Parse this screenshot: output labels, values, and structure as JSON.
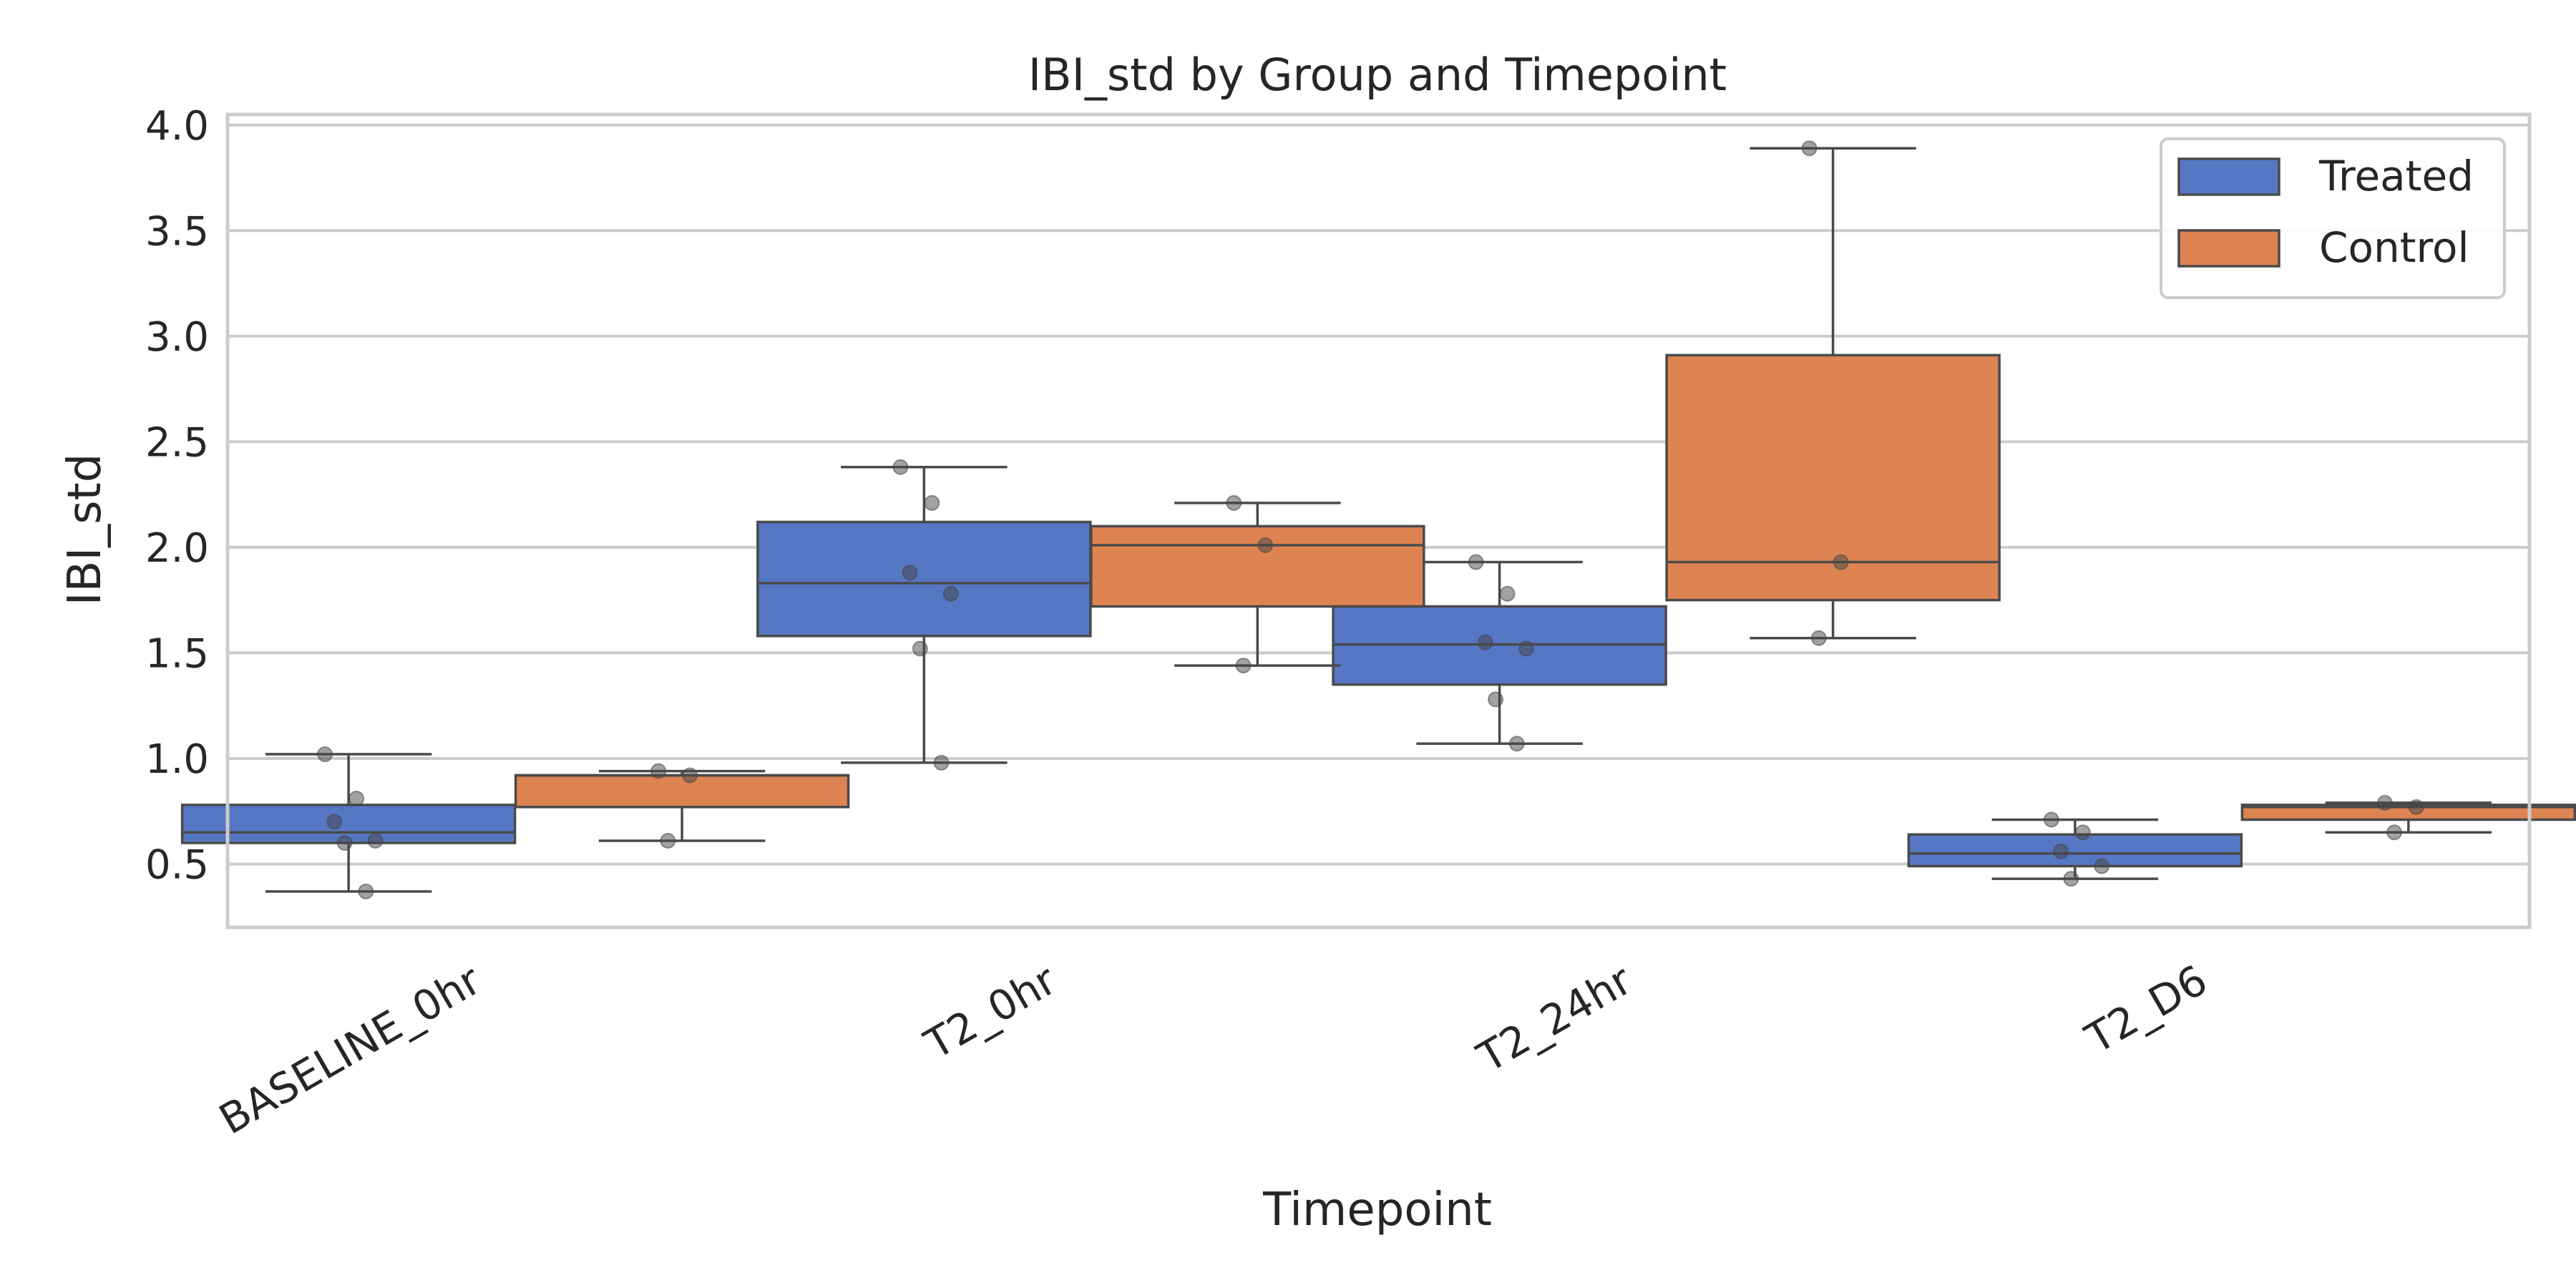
{
  "chart_data": {
    "type": "boxplot",
    "title": "IBI_std by Group and Timepoint",
    "xlabel": "Timepoint",
    "ylabel": "IBI_std",
    "categories": [
      "BASELINE_0hr",
      "T2_0hr",
      "T2_24hr",
      "T2_D6"
    ],
    "ylim": [
      0.2,
      4.05
    ],
    "yticks": [
      "0.5",
      "1.0",
      "1.5",
      "2.0",
      "2.5",
      "3.0",
      "3.5",
      "4.0"
    ],
    "grid": "horizontal",
    "legend_position": "top-right",
    "series": [
      {
        "name": "Treated",
        "color": "#5677c4",
        "boxes": [
          {
            "whislo": 0.37,
            "q1": 0.6,
            "med": 0.65,
            "q3": 0.78,
            "whishi": 1.02
          },
          {
            "whislo": 0.98,
            "q1": 1.58,
            "med": 1.83,
            "q3": 2.12,
            "whishi": 2.38
          },
          {
            "whislo": 1.07,
            "q1": 1.35,
            "med": 1.54,
            "q3": 1.72,
            "whishi": 1.93
          },
          {
            "whislo": 0.43,
            "q1": 0.49,
            "med": 0.55,
            "q3": 0.64,
            "whishi": 0.71
          }
        ],
        "points": [
          [
            1.02,
            0.81,
            0.7,
            0.61,
            0.6,
            0.37
          ],
          [
            2.38,
            2.21,
            1.88,
            1.78,
            1.52,
            0.98
          ],
          [
            1.93,
            1.78,
            1.55,
            1.52,
            1.28,
            1.07
          ],
          [
            0.71,
            0.65,
            0.56,
            0.49,
            0.43
          ]
        ]
      },
      {
        "name": "Control",
        "color": "#dd8452",
        "boxes": [
          {
            "whislo": 0.61,
            "q1": 0.77,
            "med": 0.92,
            "q3": 0.92,
            "whishi": 0.94
          },
          {
            "whislo": 1.44,
            "q1": 1.72,
            "med": 2.01,
            "q3": 2.1,
            "whishi": 2.21
          },
          {
            "whislo": 1.57,
            "q1": 1.75,
            "med": 1.93,
            "q3": 2.91,
            "whishi": 3.89
          },
          {
            "whislo": 0.65,
            "q1": 0.71,
            "med": 0.77,
            "q3": 0.78,
            "whishi": 0.79
          }
        ],
        "points": [
          [
            0.94,
            0.92,
            0.61
          ],
          [
            2.21,
            2.01,
            1.44
          ],
          [
            3.89,
            1.93,
            1.57
          ],
          [
            0.79,
            0.77,
            0.65
          ]
        ]
      }
    ]
  }
}
